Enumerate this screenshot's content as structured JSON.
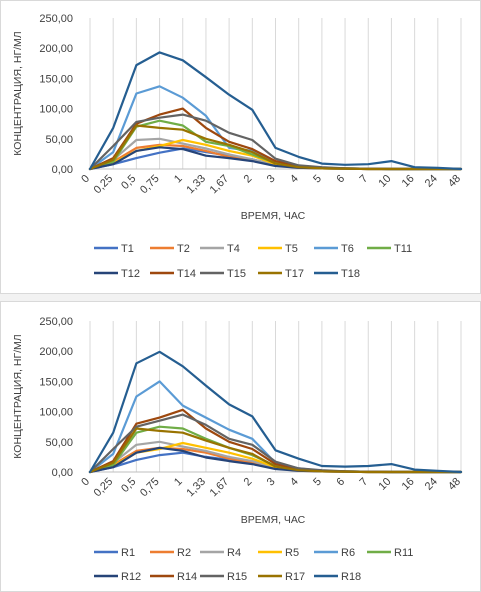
{
  "chart_data": [
    {
      "type": "line",
      "xlabel": "ВРЕМЯ, ЧАС",
      "ylabel": "КОНЦЕНТРАЦИЯ, НГ/МЛ",
      "ylim": [
        0,
        250
      ],
      "yticks": [
        "0,00",
        "50,00",
        "100,00",
        "150,00",
        "200,00",
        "250,00"
      ],
      "categories": [
        "0",
        "0,25",
        "0,5",
        "0,75",
        "1",
        "1,33",
        "1,67",
        "2",
        "3",
        "4",
        "5",
        "6",
        "7",
        "10",
        "16",
        "24",
        "48"
      ],
      "grid": "vertical",
      "legend": "bottom",
      "series": [
        {
          "name": "T1",
          "color": "#4472C4",
          "values": [
            0,
            8,
            18,
            27,
            34,
            28,
            22,
            16,
            7,
            3,
            1,
            0.5,
            0.3,
            0,
            0,
            0,
            0
          ]
        },
        {
          "name": "T2",
          "color": "#ED7D31",
          "values": [
            0,
            12,
            35,
            40,
            38,
            30,
            20,
            14,
            6,
            2,
            1,
            0.5,
            0,
            0,
            0,
            0,
            0
          ]
        },
        {
          "name": "T4",
          "color": "#A5A5A5",
          "values": [
            0,
            15,
            48,
            50,
            42,
            34,
            24,
            16,
            7,
            3,
            1,
            0.5,
            0,
            0,
            0,
            0,
            0
          ]
        },
        {
          "name": "T5",
          "color": "#FFC000",
          "values": [
            0,
            10,
            30,
            38,
            48,
            40,
            30,
            22,
            8,
            3,
            1,
            0.5,
            0,
            0,
            0,
            0,
            0
          ]
        },
        {
          "name": "T6",
          "color": "#5B9BD5",
          "values": [
            0,
            28,
            125,
            137,
            118,
            88,
            35,
            30,
            12,
            5,
            2,
            1,
            0.5,
            0,
            0,
            0,
            0
          ]
        },
        {
          "name": "T11",
          "color": "#70AD47",
          "values": [
            0,
            12,
            70,
            80,
            72,
            45,
            38,
            24,
            10,
            4,
            2,
            1,
            0.5,
            0,
            0,
            0,
            0
          ]
        },
        {
          "name": "T12",
          "color": "#264478",
          "values": [
            0,
            8,
            30,
            36,
            33,
            22,
            18,
            13,
            5,
            2,
            1,
            0.5,
            0,
            0,
            0,
            0,
            0
          ]
        },
        {
          "name": "T14",
          "color": "#9E480E",
          "values": [
            0,
            18,
            75,
            90,
            100,
            68,
            45,
            33,
            13,
            5,
            2,
            1,
            0.5,
            0,
            0,
            0,
            0
          ]
        },
        {
          "name": "T15",
          "color": "#636363",
          "values": [
            0,
            38,
            78,
            85,
            90,
            80,
            60,
            48,
            17,
            6,
            3,
            1,
            0.5,
            0,
            0,
            0,
            0
          ]
        },
        {
          "name": "T17",
          "color": "#997300",
          "values": [
            0,
            15,
            72,
            68,
            65,
            50,
            40,
            28,
            9,
            3,
            1,
            0.5,
            0,
            0,
            0,
            0,
            0
          ]
        },
        {
          "name": "T18",
          "color": "#255E91",
          "values": [
            0,
            68,
            172,
            193,
            180,
            152,
            123,
            98,
            35,
            20,
            9,
            7,
            8,
            13,
            3,
            2,
            0
          ]
        }
      ]
    },
    {
      "type": "line",
      "xlabel": "ВРЕМЯ, ЧАС",
      "ylabel": "КОНЦЕНТРАЦИЯ, НГ/МЛ",
      "ylim": [
        0,
        250
      ],
      "yticks": [
        "0,00",
        "50,00",
        "100,00",
        "150,00",
        "200,00",
        "250,00"
      ],
      "categories": [
        "0",
        "0,25",
        "0,5",
        "0,75",
        "1",
        "1,33",
        "1,67",
        "2",
        "3",
        "4",
        "5",
        "6",
        "7",
        "10",
        "16",
        "24",
        "48"
      ],
      "grid": "vertical",
      "legend": "bottom",
      "series": [
        {
          "name": "R1",
          "color": "#4472C4",
          "values": [
            0,
            8,
            20,
            28,
            32,
            25,
            20,
            15,
            6,
            3,
            1,
            0.5,
            0.3,
            0,
            0,
            0,
            0
          ]
        },
        {
          "name": "R2",
          "color": "#ED7D31",
          "values": [
            0,
            12,
            35,
            40,
            38,
            32,
            22,
            15,
            6,
            2,
            1,
            0.5,
            0,
            0,
            0,
            0,
            0
          ]
        },
        {
          "name": "R4",
          "color": "#A5A5A5",
          "values": [
            0,
            15,
            45,
            50,
            42,
            35,
            25,
            18,
            7,
            3,
            1,
            0.5,
            0,
            0,
            0,
            0,
            0
          ]
        },
        {
          "name": "R5",
          "color": "#FFC000",
          "values": [
            0,
            10,
            32,
            38,
            48,
            40,
            32,
            22,
            8,
            3,
            1,
            0.5,
            0,
            0,
            0,
            0,
            0
          ]
        },
        {
          "name": "R6",
          "color": "#5B9BD5",
          "values": [
            0,
            30,
            125,
            150,
            110,
            90,
            70,
            55,
            15,
            6,
            2,
            1,
            0.5,
            0,
            0,
            0,
            0
          ]
        },
        {
          "name": "R11",
          "color": "#70AD47",
          "values": [
            0,
            12,
            65,
            75,
            72,
            55,
            40,
            28,
            10,
            4,
            2,
            1,
            0.5,
            0,
            0,
            0,
            0
          ]
        },
        {
          "name": "R12",
          "color": "#264478",
          "values": [
            0,
            8,
            32,
            40,
            35,
            24,
            18,
            13,
            5,
            2,
            1,
            0.5,
            0,
            0,
            0,
            0,
            0
          ]
        },
        {
          "name": "R14",
          "color": "#9E480E",
          "values": [
            0,
            18,
            80,
            90,
            103,
            72,
            50,
            38,
            13,
            5,
            2,
            1,
            0.5,
            0,
            0,
            0,
            0
          ]
        },
        {
          "name": "R15",
          "color": "#636363",
          "values": [
            0,
            38,
            75,
            85,
            95,
            78,
            55,
            45,
            17,
            6,
            3,
            1,
            0.5,
            0,
            0,
            0,
            0
          ]
        },
        {
          "name": "R17",
          "color": "#997300",
          "values": [
            0,
            15,
            72,
            68,
            65,
            52,
            40,
            30,
            9,
            3,
            1,
            0.5,
            0,
            0,
            0,
            0,
            0
          ]
        },
        {
          "name": "R18",
          "color": "#255E91",
          "values": [
            0,
            65,
            180,
            199,
            175,
            143,
            112,
            92,
            36,
            22,
            10,
            9,
            10,
            13,
            4,
            2,
            0
          ]
        }
      ]
    }
  ]
}
